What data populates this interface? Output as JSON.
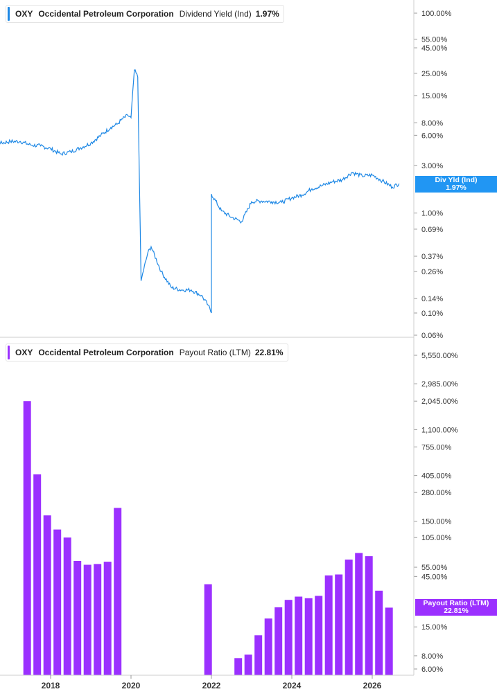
{
  "colors": {
    "yield_line": "#1e88e5",
    "bars": "#9b30ff",
    "yield_badge": "#2196f3",
    "payout_badge": "#9b30ff"
  },
  "legend_top": {
    "ticker": "OXY",
    "name": "Occidental Petroleum Corporation",
    "metric": "Dividend Yield (Ind)",
    "value": "1.97%"
  },
  "legend_bottom": {
    "ticker": "OXY",
    "name": "Occidental Petroleum Corporation",
    "metric": "Payout Ratio (LTM)",
    "value": "22.81%"
  },
  "badge_top": {
    "label": "Div Yld (Ind)",
    "value": "1.97%"
  },
  "badge_bottom": {
    "label": "Payout Ratio (LTM)",
    "value": "22.81%"
  },
  "chart_data": [
    {
      "type": "line",
      "scale": "log",
      "y_ticks": [
        "100.00%",
        "55.00%",
        "45.00%",
        "25.00%",
        "15.00%",
        "8.00%",
        "6.00%",
        "3.00%",
        "1.00%",
        "0.69%",
        "0.37%",
        "0.26%",
        "0.14%",
        "0.10%",
        "0.06%"
      ],
      "y_tick_values": [
        100,
        55,
        45,
        25,
        15,
        8,
        6,
        3,
        1,
        0.69,
        0.37,
        0.26,
        0.14,
        0.1,
        0.06
      ],
      "series": [
        {
          "x": [
            "2016-01",
            "2016-04",
            "2016-07",
            "2016-10",
            "2017-01",
            "2017-04",
            "2017-07",
            "2017-10",
            "2018-01",
            "2018-04",
            "2018-07",
            "2018-10",
            "2019-01",
            "2019-04",
            "2019-07",
            "2019-09",
            "2019-10",
            "2019-12",
            "2020-01",
            "2020-02",
            "2020-03",
            "2020-03",
            "2020-04",
            "2020-06",
            "2020-07",
            "2020-10",
            "2021-01",
            "2021-04",
            "2021-07",
            "2021-10",
            "2021-12",
            "2022-01",
            "2022-01",
            "2022-04",
            "2022-07",
            "2022-10",
            "2023-01",
            "2023-04",
            "2023-07",
            "2023-10",
            "2024-01",
            "2024-04",
            "2024-07",
            "2024-10",
            "2025-01",
            "2025-04",
            "2025-07",
            "2025-10",
            "2026-01",
            "2026-04",
            "2026-07",
            "2026-09"
          ],
          "y": [
            4.5,
            4.6,
            4.8,
            5.0,
            5.2,
            5.2,
            4.8,
            4.7,
            4.4,
            3.9,
            4.1,
            4.5,
            5.0,
            6.0,
            7.2,
            7.8,
            8.5,
            9.5,
            9.0,
            27.0,
            23.0,
            23.0,
            0.21,
            0.4,
            0.46,
            0.26,
            0.18,
            0.17,
            0.17,
            0.15,
            0.12,
            0.1,
            1.55,
            1.05,
            0.91,
            0.82,
            1.3,
            1.32,
            1.3,
            1.28,
            1.42,
            1.52,
            1.75,
            1.88,
            2.05,
            2.15,
            2.55,
            2.35,
            2.4,
            2.1,
            1.82,
            1.97
          ]
        }
      ],
      "last_value": "1.97%"
    },
    {
      "type": "bar",
      "scale": "log",
      "y_ticks": [
        "5,550.00%",
        "2,985.00%",
        "2,045.00%",
        "1,100.00%",
        "755.00%",
        "405.00%",
        "280.00%",
        "150.00%",
        "105.00%",
        "55.00%",
        "45.00%",
        "15.00%",
        "8.00%",
        "6.00%"
      ],
      "y_tick_values": [
        5550,
        2985,
        2045,
        1100,
        755,
        405,
        280,
        150,
        105,
        55,
        45,
        15,
        8,
        6
      ],
      "x": [
        "2017-06",
        "2017-09",
        "2017-12",
        "2018-03",
        "2018-06",
        "2018-09",
        "2018-12",
        "2019-03",
        "2019-06",
        "2019-09",
        "2021-12",
        "2022-09",
        "2022-12",
        "2023-03",
        "2023-06",
        "2023-09",
        "2023-12",
        "2024-03",
        "2024-06",
        "2024-09",
        "2024-12",
        "2025-03",
        "2025-06",
        "2025-09",
        "2025-12",
        "2026-03",
        "2026-06"
      ],
      "values": [
        2045,
        415,
        170,
        125,
        105,
        63,
        58,
        59,
        62,
        200,
        38,
        7.6,
        8.2,
        12.5,
        18,
        23,
        27,
        29,
        28,
        29.5,
        46,
        47,
        65,
        75,
        70,
        33,
        22.81
      ],
      "last_value": "22.81%"
    }
  ],
  "x_axis": {
    "labels": [
      "2018",
      "2020",
      "2022",
      "2024",
      "2026"
    ]
  }
}
